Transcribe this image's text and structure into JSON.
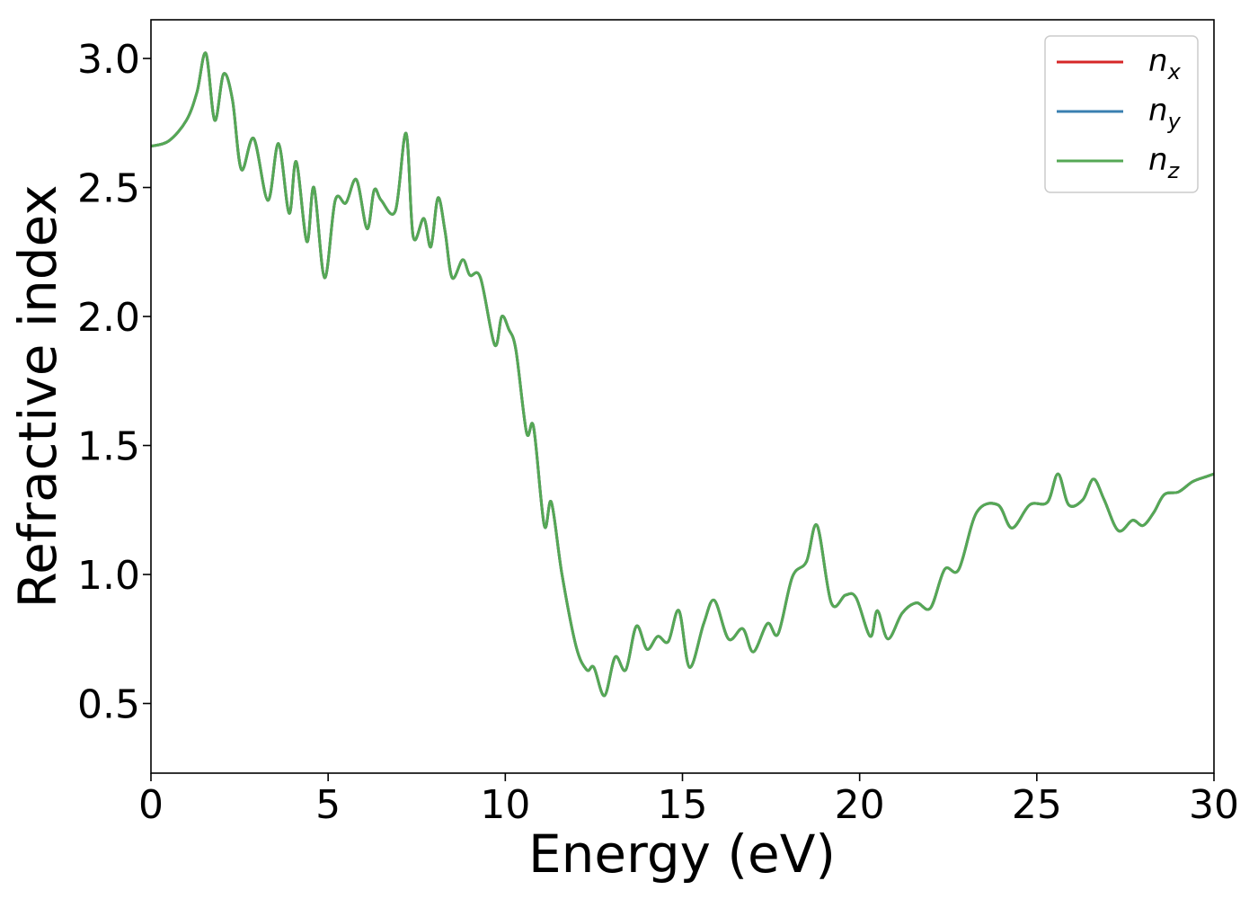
{
  "chart_data": {
    "type": "line",
    "title": "",
    "xlabel": "Energy (eV)",
    "ylabel": "Refractive index",
    "xlim": [
      0,
      30
    ],
    "ylim": [
      0.23,
      3.15
    ],
    "xticks": [
      0,
      5,
      10,
      15,
      20,
      25,
      30
    ],
    "xtick_labels": [
      "0",
      "5",
      "10",
      "15",
      "20",
      "25",
      "30"
    ],
    "yticks": [
      0.5,
      1.0,
      1.5,
      2.0,
      2.5,
      3.0
    ],
    "ytick_labels": [
      "0.5",
      "1.0",
      "1.5",
      "2.0",
      "2.5",
      "3.0"
    ],
    "grid": false,
    "legend_position": "top-right",
    "legend": [
      {
        "base": "n",
        "sub": "x",
        "color": "#d62728"
      },
      {
        "base": "n",
        "sub": "y",
        "color": "#3a7fb0"
      },
      {
        "base": "n",
        "sub": "z",
        "color": "#55a855"
      }
    ],
    "x": [
      0,
      0.5,
      1.0,
      1.3,
      1.55,
      1.8,
      2.05,
      2.3,
      2.55,
      2.9,
      3.3,
      3.6,
      3.9,
      4.1,
      4.4,
      4.6,
      4.9,
      5.2,
      5.5,
      5.8,
      6.1,
      6.3,
      6.5,
      6.9,
      7.2,
      7.4,
      7.7,
      7.9,
      8.1,
      8.3,
      8.5,
      8.8,
      9.0,
      9.3,
      9.7,
      9.9,
      10.1,
      10.3,
      10.6,
      10.8,
      11.1,
      11.3,
      11.6,
      12.0,
      12.3,
      12.5,
      12.8,
      13.1,
      13.4,
      13.7,
      14.0,
      14.3,
      14.6,
      14.9,
      15.2,
      15.6,
      15.9,
      16.3,
      16.7,
      17.0,
      17.4,
      17.7,
      18.1,
      18.5,
      18.8,
      19.2,
      19.6,
      19.9,
      20.3,
      20.5,
      20.8,
      21.2,
      21.6,
      22.0,
      22.4,
      22.8,
      23.3,
      23.9,
      24.3,
      24.8,
      25.3,
      25.6,
      25.9,
      26.3,
      26.6,
      26.9,
      27.3,
      27.7,
      28.0,
      28.3,
      28.6,
      29.0,
      29.4,
      29.8,
      30.0
    ],
    "series": [
      {
        "name": "n_x",
        "color": "#d62728",
        "values": [
          2.66,
          2.68,
          2.76,
          2.87,
          3.02,
          2.76,
          2.94,
          2.84,
          2.57,
          2.69,
          2.45,
          2.67,
          2.4,
          2.6,
          2.29,
          2.5,
          2.15,
          2.45,
          2.44,
          2.53,
          2.34,
          2.49,
          2.45,
          2.41,
          2.71,
          2.31,
          2.38,
          2.27,
          2.46,
          2.33,
          2.15,
          2.22,
          2.16,
          2.15,
          1.89,
          2.0,
          1.95,
          1.87,
          1.55,
          1.57,
          1.19,
          1.28,
          1.0,
          0.72,
          0.63,
          0.64,
          0.53,
          0.68,
          0.63,
          0.8,
          0.71,
          0.76,
          0.74,
          0.86,
          0.64,
          0.81,
          0.9,
          0.75,
          0.79,
          0.7,
          0.81,
          0.77,
          0.99,
          1.05,
          1.19,
          0.89,
          0.92,
          0.91,
          0.76,
          0.86,
          0.75,
          0.85,
          0.89,
          0.87,
          1.02,
          1.02,
          1.24,
          1.27,
          1.18,
          1.27,
          1.28,
          1.39,
          1.27,
          1.29,
          1.37,
          1.29,
          1.17,
          1.21,
          1.19,
          1.24,
          1.31,
          1.32,
          1.36,
          1.38,
          1.39
        ]
      },
      {
        "name": "n_y",
        "color": "#3a7fb0",
        "values": [
          2.66,
          2.68,
          2.76,
          2.87,
          3.02,
          2.76,
          2.94,
          2.84,
          2.57,
          2.69,
          2.45,
          2.67,
          2.4,
          2.6,
          2.29,
          2.5,
          2.15,
          2.45,
          2.44,
          2.53,
          2.34,
          2.49,
          2.45,
          2.41,
          2.71,
          2.31,
          2.38,
          2.27,
          2.46,
          2.33,
          2.15,
          2.22,
          2.16,
          2.15,
          1.89,
          2.0,
          1.95,
          1.87,
          1.55,
          1.57,
          1.19,
          1.28,
          1.0,
          0.72,
          0.63,
          0.64,
          0.53,
          0.68,
          0.63,
          0.8,
          0.71,
          0.76,
          0.74,
          0.86,
          0.64,
          0.81,
          0.9,
          0.75,
          0.79,
          0.7,
          0.81,
          0.77,
          0.99,
          1.05,
          1.19,
          0.89,
          0.92,
          0.91,
          0.76,
          0.86,
          0.75,
          0.85,
          0.89,
          0.87,
          1.02,
          1.02,
          1.24,
          1.27,
          1.18,
          1.27,
          1.28,
          1.39,
          1.27,
          1.29,
          1.37,
          1.29,
          1.17,
          1.21,
          1.19,
          1.24,
          1.31,
          1.32,
          1.36,
          1.38,
          1.39
        ]
      },
      {
        "name": "n_z",
        "color": "#55a855",
        "values": [
          2.66,
          2.68,
          2.76,
          2.87,
          3.02,
          2.76,
          2.94,
          2.84,
          2.57,
          2.69,
          2.45,
          2.67,
          2.4,
          2.6,
          2.29,
          2.5,
          2.15,
          2.45,
          2.44,
          2.53,
          2.34,
          2.49,
          2.45,
          2.41,
          2.71,
          2.31,
          2.38,
          2.27,
          2.46,
          2.33,
          2.15,
          2.22,
          2.16,
          2.15,
          1.89,
          2.0,
          1.95,
          1.87,
          1.55,
          1.57,
          1.19,
          1.28,
          1.0,
          0.72,
          0.63,
          0.64,
          0.53,
          0.68,
          0.63,
          0.8,
          0.71,
          0.76,
          0.74,
          0.86,
          0.64,
          0.81,
          0.9,
          0.75,
          0.79,
          0.7,
          0.81,
          0.77,
          0.99,
          1.05,
          1.19,
          0.89,
          0.92,
          0.91,
          0.76,
          0.86,
          0.75,
          0.85,
          0.89,
          0.87,
          1.02,
          1.02,
          1.24,
          1.27,
          1.18,
          1.27,
          1.28,
          1.39,
          1.27,
          1.29,
          1.37,
          1.29,
          1.17,
          1.21,
          1.19,
          1.24,
          1.31,
          1.32,
          1.36,
          1.38,
          1.39
        ]
      }
    ]
  }
}
